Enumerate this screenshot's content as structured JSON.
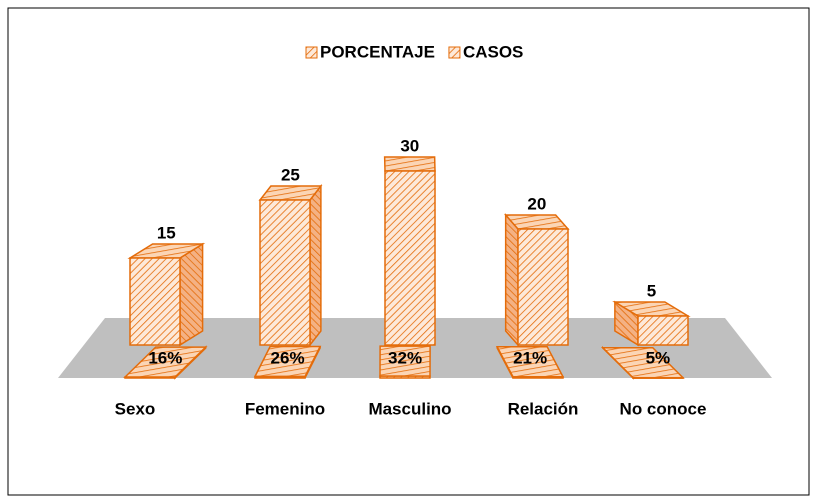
{
  "chart_data": {
    "type": "bar3d",
    "categories": [
      "Sexo",
      "Femenino",
      "Masculino",
      "Relación",
      "No conoce"
    ],
    "series": [
      {
        "name": "PORCENTAJE",
        "color": "#e46c0a",
        "values": [
          0.16,
          0.26,
          0.32,
          0.21,
          0.05
        ],
        "value_labels": [
          "16%",
          "26%",
          "32%",
          "21%",
          "5%"
        ]
      },
      {
        "name": "CASOS",
        "color": "#e46c0a",
        "values": [
          15,
          25,
          30,
          20,
          5
        ]
      }
    ],
    "ylim": [
      0,
      35
    ]
  }
}
